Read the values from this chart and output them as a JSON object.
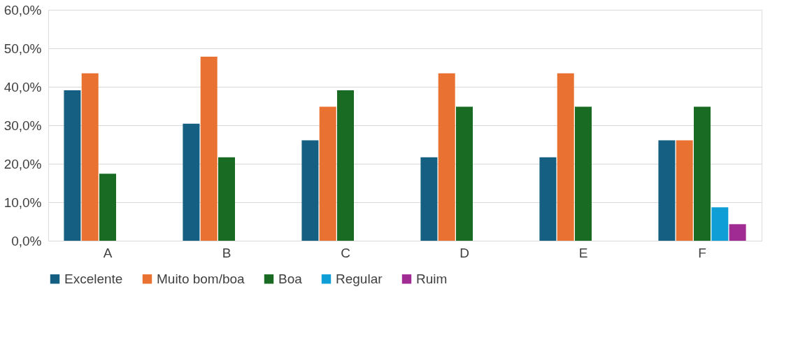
{
  "chart_data": {
    "type": "bar",
    "categories": [
      "A",
      "B",
      "C",
      "D",
      "E",
      "F"
    ],
    "series": [
      {
        "name": "Excelente",
        "color": "#156082",
        "values": [
          39.1,
          30.4,
          26.1,
          21.7,
          21.7,
          26.1
        ]
      },
      {
        "name": "Muito bom/boa",
        "color": "#e97132",
        "values": [
          43.5,
          47.8,
          34.8,
          43.5,
          43.5,
          26.1
        ]
      },
      {
        "name": "Boa",
        "color": "#196b24",
        "values": [
          17.4,
          21.7,
          39.1,
          34.8,
          34.8,
          34.8
        ]
      },
      {
        "name": "Regular",
        "color": "#0f9ed5",
        "values": [
          null,
          null,
          null,
          null,
          null,
          8.7
        ]
      },
      {
        "name": "Ruim",
        "color": "#a02b93",
        "values": [
          null,
          null,
          null,
          null,
          null,
          4.3
        ]
      }
    ],
    "ylim": [
      0,
      60
    ],
    "yticks": [
      {
        "value": 0,
        "label": "0,0%"
      },
      {
        "value": 10,
        "label": "10,0%"
      },
      {
        "value": 20,
        "label": "20,0%"
      },
      {
        "value": 30,
        "label": "30,0%"
      },
      {
        "value": 40,
        "label": "40,0%"
      },
      {
        "value": 50,
        "label": "50,0%"
      },
      {
        "value": 60,
        "label": "60,0%"
      }
    ],
    "grid": "y",
    "legend": "bottom"
  }
}
